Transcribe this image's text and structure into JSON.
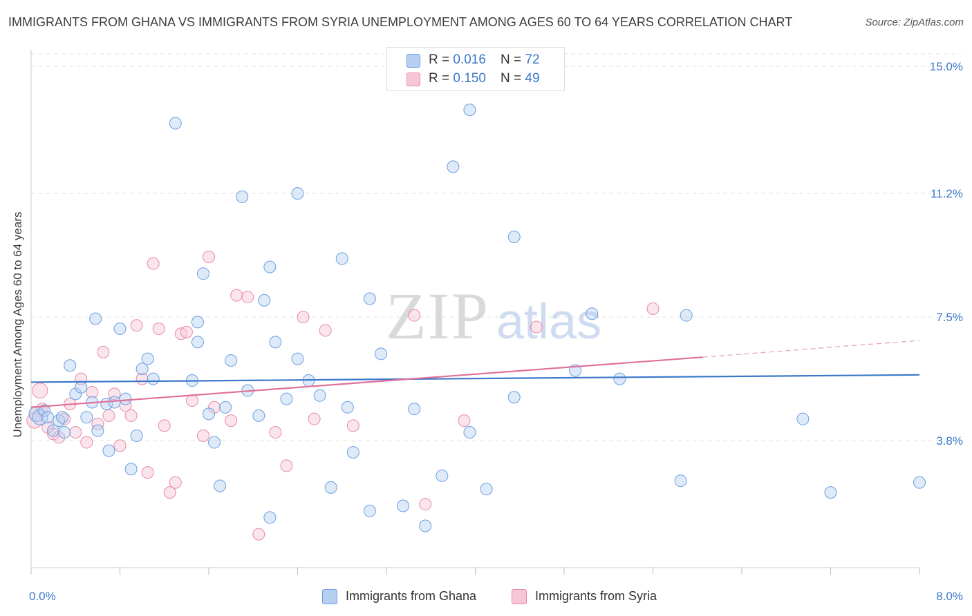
{
  "title": "IMMIGRANTS FROM GHANA VS IMMIGRANTS FROM SYRIA UNEMPLOYMENT AMONG AGES 60 TO 64 YEARS CORRELATION CHART",
  "source": "Source: ZipAtlas.com",
  "watermark": {
    "zip": "ZIP",
    "atlas": "atlas"
  },
  "colors": {
    "ghana": "#6a9fe0",
    "ghana_fill": "#b7d0f2",
    "syria": "#e888a8",
    "syria_fill": "#f6c6d6",
    "axis_text": "#3a78c9",
    "grid": "#dddddd"
  },
  "legend": {
    "ghana": {
      "r_label": "R = ",
      "r_value": "0.016",
      "n_label": "N = ",
      "n_value": "72"
    },
    "syria": {
      "r_label": "R = ",
      "r_value": "0.150",
      "n_label": "N = ",
      "n_value": "49"
    }
  },
  "chart_data": {
    "type": "scatter",
    "title": "IMMIGRANTS FROM GHANA VS IMMIGRANTS FROM SYRIA UNEMPLOYMENT AMONG AGES 60 TO 64 YEARS CORRELATION CHART",
    "xlabel": "",
    "ylabel": "Unemployment Among Ages 60 to 64 years",
    "xlim": [
      0,
      8
    ],
    "ylim": [
      0,
      15.5
    ],
    "x_tick_labels": [
      "0.0%",
      "8.0%"
    ],
    "y_ticks": [
      3.8,
      7.5,
      11.2,
      15.0
    ],
    "y_tick_labels": [
      "3.8%",
      "7.5%",
      "11.2%",
      "15.0%"
    ],
    "grid": true,
    "legend_position": "top-center",
    "series": [
      {
        "name": "Immigrants from Ghana",
        "color": "#6a9fe0",
        "trend": {
          "x": [
            0,
            8
          ],
          "y": [
            5.55,
            5.77
          ]
        },
        "points": [
          [
            0.05,
            4.6
          ],
          [
            0.08,
            4.5
          ],
          [
            0.12,
            4.7
          ],
          [
            0.15,
            4.5
          ],
          [
            0.2,
            4.1
          ],
          [
            0.25,
            4.4
          ],
          [
            0.28,
            4.5
          ],
          [
            0.3,
            4.05
          ],
          [
            0.35,
            6.05
          ],
          [
            0.4,
            5.2
          ],
          [
            0.45,
            5.4
          ],
          [
            0.5,
            4.5
          ],
          [
            0.55,
            4.95
          ],
          [
            0.58,
            7.45
          ],
          [
            0.6,
            4.1
          ],
          [
            0.68,
            4.9
          ],
          [
            0.7,
            3.5
          ],
          [
            0.75,
            4.95
          ],
          [
            0.8,
            7.15
          ],
          [
            0.85,
            5.05
          ],
          [
            0.9,
            2.95
          ],
          [
            0.95,
            3.95
          ],
          [
            1.0,
            5.95
          ],
          [
            1.05,
            6.25
          ],
          [
            1.1,
            5.65
          ],
          [
            1.3,
            13.3
          ],
          [
            1.45,
            5.6
          ],
          [
            1.5,
            7.35
          ],
          [
            1.55,
            8.8
          ],
          [
            1.5,
            6.75
          ],
          [
            1.6,
            4.6
          ],
          [
            1.65,
            3.75
          ],
          [
            1.7,
            2.45
          ],
          [
            1.75,
            4.8
          ],
          [
            1.8,
            6.2
          ],
          [
            1.9,
            11.1
          ],
          [
            1.95,
            5.3
          ],
          [
            2.05,
            4.55
          ],
          [
            2.1,
            8.0
          ],
          [
            2.15,
            9.0
          ],
          [
            2.2,
            6.75
          ],
          [
            2.3,
            5.05
          ],
          [
            2.4,
            11.2
          ],
          [
            2.4,
            6.25
          ],
          [
            2.5,
            5.6
          ],
          [
            2.6,
            5.15
          ],
          [
            2.7,
            2.4
          ],
          [
            2.8,
            9.25
          ],
          [
            2.85,
            4.8
          ],
          [
            2.9,
            3.45
          ],
          [
            3.05,
            8.05
          ],
          [
            3.15,
            6.4
          ],
          [
            3.35,
            1.85
          ],
          [
            3.45,
            4.75
          ],
          [
            3.55,
            1.25
          ],
          [
            3.7,
            2.75
          ],
          [
            3.8,
            12.0
          ],
          [
            3.95,
            4.05
          ],
          [
            3.95,
            13.7
          ],
          [
            4.1,
            2.35
          ],
          [
            4.35,
            9.9
          ],
          [
            4.35,
            5.1
          ],
          [
            4.9,
            5.9
          ],
          [
            5.05,
            7.6
          ],
          [
            5.3,
            5.65
          ],
          [
            5.85,
            2.6
          ],
          [
            5.9,
            7.55
          ],
          [
            6.95,
            4.45
          ],
          [
            7.2,
            2.25
          ],
          [
            8.0,
            2.55
          ],
          [
            2.15,
            1.5
          ],
          [
            3.05,
            1.7
          ]
        ]
      },
      {
        "name": "Immigrants from Syria",
        "color": "#e888a8",
        "trend": {
          "x": [
            0,
            6.05
          ],
          "y": [
            4.8,
            6.3
          ]
        },
        "trend_dashed": {
          "x": [
            6.05,
            8
          ],
          "y": [
            6.3,
            6.8
          ]
        },
        "points": [
          [
            0.03,
            4.4
          ],
          [
            0.05,
            4.6
          ],
          [
            0.08,
            5.3
          ],
          [
            0.1,
            4.75
          ],
          [
            0.15,
            4.2
          ],
          [
            0.2,
            4.0
          ],
          [
            0.25,
            3.9
          ],
          [
            0.3,
            4.45
          ],
          [
            0.35,
            4.9
          ],
          [
            0.4,
            4.05
          ],
          [
            0.45,
            5.65
          ],
          [
            0.5,
            3.75
          ],
          [
            0.55,
            5.25
          ],
          [
            0.6,
            4.3
          ],
          [
            0.65,
            6.45
          ],
          [
            0.7,
            4.55
          ],
          [
            0.75,
            5.2
          ],
          [
            0.8,
            3.65
          ],
          [
            0.85,
            4.85
          ],
          [
            0.9,
            4.55
          ],
          [
            0.95,
            7.25
          ],
          [
            1.0,
            5.65
          ],
          [
            1.05,
            2.85
          ],
          [
            1.1,
            9.1
          ],
          [
            1.15,
            7.15
          ],
          [
            1.2,
            4.25
          ],
          [
            1.25,
            2.25
          ],
          [
            1.3,
            2.55
          ],
          [
            1.35,
            7.0
          ],
          [
            1.4,
            7.05
          ],
          [
            1.45,
            5.0
          ],
          [
            1.55,
            3.95
          ],
          [
            1.6,
            9.3
          ],
          [
            1.65,
            4.8
          ],
          [
            1.8,
            4.4
          ],
          [
            1.85,
            8.15
          ],
          [
            1.95,
            8.1
          ],
          [
            2.05,
            1.0
          ],
          [
            2.2,
            4.05
          ],
          [
            2.3,
            3.05
          ],
          [
            2.45,
            7.5
          ],
          [
            2.55,
            4.45
          ],
          [
            2.65,
            7.1
          ],
          [
            2.9,
            4.25
          ],
          [
            3.45,
            7.55
          ],
          [
            3.55,
            1.9
          ],
          [
            3.9,
            4.4
          ],
          [
            4.55,
            7.2
          ],
          [
            5.6,
            7.75
          ]
        ]
      }
    ]
  }
}
